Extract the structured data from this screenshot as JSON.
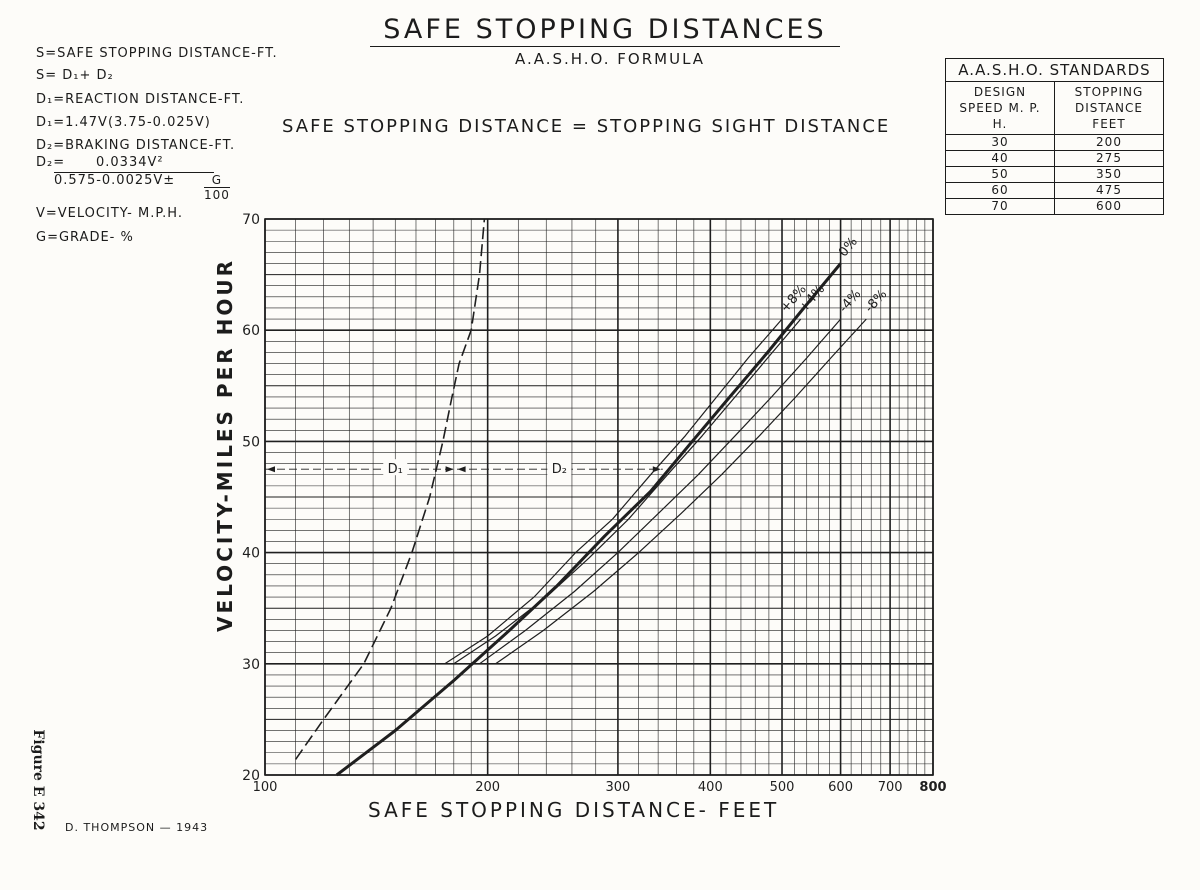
{
  "header": {
    "title": "SAFE STOPPING DISTANCES",
    "subtitle": "A.A.S.H.O. FORMULA",
    "equivalence": "SAFE STOPPING DISTANCE = STOPPING SIGHT DISTANCE"
  },
  "legend": {
    "lines": [
      "S=SAFE STOPPING DISTANCE-FT.",
      "S= D₁+ D₂",
      "D₁=REACTION DISTANCE-FT.",
      "D₁=1.47V(3.75-0.025V)",
      "D₂=BRAKING DISTANCE-FT."
    ],
    "d2_label": "D₂=",
    "d2_numerator": "0.0334V²",
    "d2_denominator": "0.575-0.0025V±",
    "g_top": "G",
    "g_bottom": "100",
    "v_def": "V=VELOCITY- M.P.H.",
    "g_def": "G=GRADE- %"
  },
  "standards": {
    "caption": "A.A.S.H.O. STANDARDS",
    "col1": "DESIGN SPEED M. P. H.",
    "col2": "STOPPING DISTANCE FEET",
    "rows": [
      {
        "speed": "30",
        "distance": "200"
      },
      {
        "speed": "40",
        "distance": "275"
      },
      {
        "speed": "50",
        "distance": "350"
      },
      {
        "speed": "60",
        "distance": "475"
      },
      {
        "speed": "70",
        "distance": "600"
      }
    ]
  },
  "footer": {
    "credit": "D. THOMPSON — 1943",
    "figure": "Figure E 342"
  },
  "chart_data": {
    "type": "line",
    "title": "SAFE STOPPING DISTANCES",
    "xlabel": "SAFE STOPPING DISTANCE- FEET",
    "ylabel": "VELOCITY-MILES PER HOUR",
    "x_scale": "log",
    "xlim": [
      100,
      800
    ],
    "ylim": [
      20,
      70
    ],
    "x_ticks": [
      "100",
      "200",
      "300",
      "400",
      "500",
      "600",
      "700",
      "800"
    ],
    "y_ticks": [
      "20",
      "30",
      "40",
      "50",
      "60",
      "70"
    ],
    "grid": true,
    "series": [
      {
        "name": "D₁",
        "style": "dashed",
        "x": [
          110,
          120,
          136,
          148,
          158,
          167,
          174,
          179,
          183,
          190,
          195,
          198
        ],
        "y": [
          21.4,
          25,
          30,
          35,
          40,
          45,
          50,
          54,
          57,
          60,
          65,
          70
        ]
      },
      {
        "name": "+8%",
        "style": "thin",
        "x": [
          175,
          200,
          231,
          263,
          295,
          332,
          370,
          408,
          450,
          500
        ],
        "y": [
          30,
          32.5,
          36,
          40,
          43,
          47,
          50.5,
          54,
          57.5,
          61
        ]
      },
      {
        "name": "+4%",
        "style": "thin",
        "x": [
          180,
          205,
          240,
          274,
          310,
          350,
          390,
          432,
          478,
          530
        ],
        "y": [
          30,
          32.5,
          36,
          39.5,
          43,
          47,
          50.5,
          54,
          57.5,
          61
        ]
      },
      {
        "name": "0%",
        "style": "bold",
        "x": [
          125,
          150,
          180,
          214,
          248,
          288,
          332,
          378,
          425,
          478,
          535,
          600
        ],
        "y": [
          20,
          24,
          28.5,
          33,
          37,
          41.5,
          45.5,
          50,
          54,
          58,
          62,
          66
        ]
      },
      {
        "name": "-4%",
        "style": "thin",
        "x": [
          195,
          225,
          262,
          300,
          340,
          385,
          432,
          484,
          540,
          600
        ],
        "y": [
          30,
          33,
          36.5,
          40,
          43.5,
          47,
          50.5,
          54,
          57.5,
          61
        ]
      },
      {
        "name": "-8%",
        "style": "thin",
        "x": [
          205,
          238,
          278,
          320,
          365,
          414,
          466,
          522,
          582,
          650
        ],
        "y": [
          30,
          33,
          36.5,
          40,
          43.5,
          47,
          50.5,
          54,
          57.5,
          61
        ]
      }
    ],
    "curve_labels": [
      "+8%",
      "+4%",
      "0%",
      "-4%",
      "-8%"
    ],
    "annotations": [
      {
        "text": "D₁",
        "x": 150,
        "y": 47.5
      },
      {
        "text": "D₂",
        "x": 250,
        "y": 47.5
      }
    ],
    "dimension_line": {
      "y": 47.5,
      "x_start": 100,
      "x_mid": 181,
      "x_end": 345
    }
  }
}
